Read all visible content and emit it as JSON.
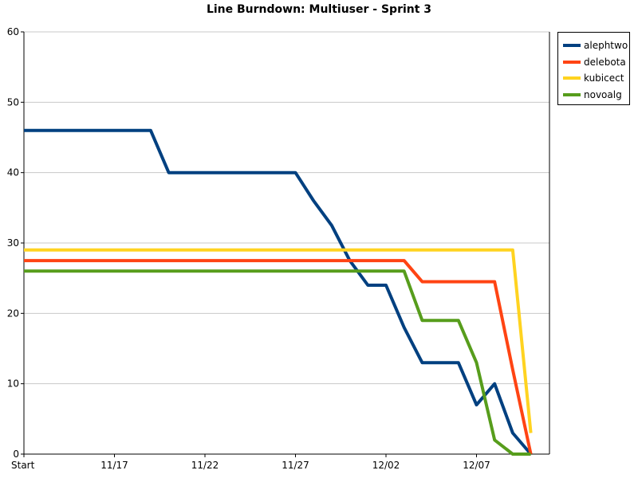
{
  "chart_data": {
    "type": "line",
    "title": "Line Burndown: Multiuser - Sprint 3",
    "xlabel": "",
    "ylabel": "",
    "ylim": [
      0,
      60
    ],
    "y_ticks": [
      0,
      10,
      20,
      30,
      40,
      50,
      60
    ],
    "x_tick_labels": [
      "Start",
      "11/17",
      "11/22",
      "11/27",
      "12/02",
      "12/07"
    ],
    "x": [
      0,
      1,
      2,
      3,
      4,
      5,
      6,
      7,
      8,
      9,
      10,
      11,
      12,
      13,
      14,
      15,
      16,
      17,
      18,
      19,
      20,
      21,
      22,
      23,
      24,
      25,
      26,
      27,
      28
    ],
    "grid": true,
    "legend_position": "top-right",
    "series": [
      {
        "name": "alephtwo",
        "color": "#004080",
        "values": [
          46,
          46,
          46,
          46,
          46,
          46,
          46,
          46,
          40,
          40,
          40,
          40,
          40,
          40,
          40,
          40,
          36,
          32.5,
          27.5,
          24,
          24,
          18,
          13,
          13,
          13,
          7,
          10,
          3,
          0
        ]
      },
      {
        "name": "delebota",
        "color": "#ff4413",
        "values": [
          27.5,
          27.5,
          27.5,
          27.5,
          27.5,
          27.5,
          27.5,
          27.5,
          27.5,
          27.5,
          27.5,
          27.5,
          27.5,
          27.5,
          27.5,
          27.5,
          27.5,
          27.5,
          27.5,
          27.5,
          27.5,
          27.5,
          24.5,
          24.5,
          24.5,
          24.5,
          24.5,
          12,
          0
        ]
      },
      {
        "name": "kubicect",
        "color": "#ffd320",
        "values": [
          29,
          29,
          29,
          29,
          29,
          29,
          29,
          29,
          29,
          29,
          29,
          29,
          29,
          29,
          29,
          29,
          29,
          29,
          29,
          29,
          29,
          29,
          29,
          29,
          29,
          29,
          29,
          29,
          3
        ]
      },
      {
        "name": "novoalg",
        "color": "#579d1c",
        "values": [
          26,
          26,
          26,
          26,
          26,
          26,
          26,
          26,
          26,
          26,
          26,
          26,
          26,
          26,
          26,
          26,
          26,
          26,
          26,
          26,
          26,
          26,
          19,
          19,
          19,
          13,
          2,
          0,
          0
        ]
      }
    ]
  }
}
